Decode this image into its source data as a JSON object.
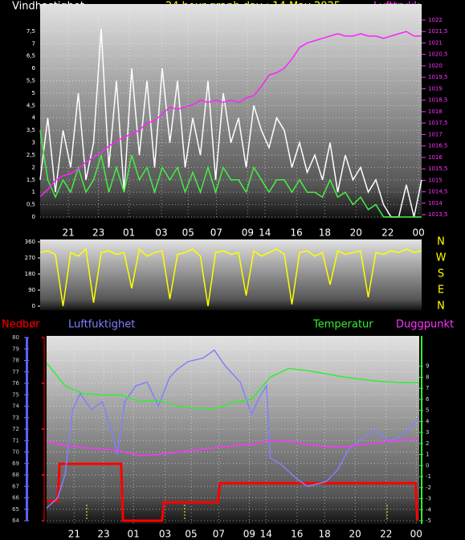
{
  "chart_data": [
    {
      "type": "line",
      "title": "24 hour graph day : 14 May 2025",
      "left_axis_label": "Vindhastighet",
      "right_axis_label": "Lufttrykk",
      "grid": true,
      "xlim": [
        0,
        100
      ],
      "xticks": [
        {
          "value": 7.4,
          "label": "21"
        },
        {
          "value": 15.3,
          "label": "23"
        },
        {
          "value": 23.3,
          "label": "01"
        },
        {
          "value": 31.8,
          "label": "03"
        },
        {
          "value": 38.8,
          "label": "05"
        },
        {
          "value": 46.2,
          "label": "07"
        },
        {
          "value": 54.4,
          "label": "09"
        },
        {
          "value": 58.9,
          "label": "14"
        },
        {
          "value": 67.2,
          "label": "16"
        },
        {
          "value": 74.6,
          "label": "18"
        },
        {
          "value": 82.8,
          "label": "20"
        },
        {
          "value": 91.1,
          "label": "22"
        },
        {
          "value": 99.2,
          "label": "00"
        }
      ],
      "ylim": [
        0,
        8.6
      ],
      "yticks": [
        0,
        {
          "value": 0.5,
          "label": "0,5"
        },
        1,
        {
          "value": 1.5,
          "label": "1,5"
        },
        2,
        {
          "value": 2.5,
          "label": "2,5"
        },
        3,
        {
          "value": 3.5,
          "label": "3,5"
        },
        4,
        {
          "value": 4.5,
          "label": "4,5"
        },
        5,
        {
          "value": 5.5,
          "label": "5,5"
        },
        6,
        {
          "value": 6.5,
          "label": "6,5"
        },
        7,
        {
          "value": 7.5,
          "label": "7,5"
        }
      ],
      "y2lim": [
        1013.4,
        1022.7
      ],
      "y2ticks": [
        {
          "value": 1013.5,
          "label": "1013,5"
        },
        1014,
        {
          "value": 1014.5,
          "label": "1014,5"
        },
        1015,
        {
          "value": 1015.5,
          "label": "1015,5"
        },
        1016,
        {
          "value": 1016.5,
          "label": "1016,5"
        },
        1017,
        {
          "value": 1017.5,
          "label": "1017,5"
        },
        1018,
        {
          "value": 1018.5,
          "label": "1018,5"
        },
        1019,
        {
          "value": 1019.5,
          "label": "1019,5"
        },
        1020,
        {
          "value": 1020.5,
          "label": "1020,5"
        },
        1021,
        {
          "value": 1021.5,
          "label": "1021,5"
        },
        1022
      ],
      "x": [
        0,
        2,
        4,
        6,
        8,
        10,
        12,
        14,
        16,
        18,
        20,
        22,
        24,
        26,
        28,
        30,
        32,
        34,
        36,
        38,
        40,
        42,
        44,
        46,
        48,
        50,
        52,
        54,
        56,
        58,
        60,
        62,
        64,
        66,
        68,
        70,
        72,
        74,
        76,
        78,
        80,
        82,
        84,
        86,
        88,
        90,
        92,
        94,
        96,
        98,
        100
      ],
      "series": [
        {
          "color": "#ffffff",
          "values": [
            1.5,
            4,
            1,
            3.5,
            2,
            5,
            1.5,
            3,
            7.6,
            2,
            5.5,
            1,
            6,
            2.5,
            5.5,
            2,
            6,
            3,
            5.5,
            2,
            4,
            2.5,
            5.5,
            1.5,
            5,
            3,
            4,
            2,
            4.5,
            3.5,
            2.8,
            4,
            3.5,
            2,
            3,
            1.8,
            2.5,
            1.5,
            3,
            1,
            2.5,
            1.5,
            2,
            1,
            1.5,
            0.5,
            0,
            0,
            1.3,
            0,
            1.5
          ]
        },
        {
          "color": "#44ee44",
          "values": [
            3.5,
            1.5,
            0.8,
            1.5,
            1,
            2,
            1,
            1.5,
            2.5,
            1,
            2,
            1,
            2.5,
            1.5,
            2,
            1,
            2,
            1.5,
            2,
            1,
            1.8,
            1,
            2,
            1,
            2,
            1.5,
            1.5,
            1,
            2,
            1.5,
            1,
            1.5,
            1.5,
            1,
            1.5,
            1,
            1,
            0.8,
            1.5,
            0.8,
            1,
            0.5,
            0.8,
            0.3,
            0.5,
            0,
            0,
            0,
            0,
            0,
            0
          ]
        },
        {
          "color": "#ff22ff",
          "axis": "y2",
          "values": [
            1014.3,
            1014.6,
            1015,
            1015.2,
            1015.3,
            1015.5,
            1015.8,
            1016,
            1016.2,
            1016.5,
            1016.7,
            1016.9,
            1017,
            1017.2,
            1017.5,
            1017.6,
            1017.9,
            1018.2,
            1018.1,
            1018.2,
            1018.3,
            1018.5,
            1018.4,
            1018.5,
            1018.4,
            1018.5,
            1018.4,
            1018.6,
            1018.7,
            1019.1,
            1019.6,
            1019.7,
            1019.9,
            1020.3,
            1020.8,
            1021,
            1021.1,
            1021.2,
            1021.3,
            1021.4,
            1021.3,
            1021.3,
            1021.4,
            1021.3,
            1021.3,
            1021.2,
            1021.3,
            1021.4,
            1021.5,
            1021.3,
            1021.3
          ]
        }
      ]
    },
    {
      "type": "line",
      "xlim": [
        0,
        100
      ],
      "ylim": [
        0,
        360
      ],
      "yticks": [
        0,
        90,
        180,
        270,
        360
      ],
      "compass_labels": [
        "N",
        "W",
        "S",
        "E",
        "N"
      ],
      "x": [
        0,
        2,
        4,
        6,
        8,
        10,
        12,
        14,
        16,
        18,
        20,
        22,
        24,
        26,
        28,
        30,
        32,
        34,
        36,
        38,
        40,
        42,
        44,
        46,
        48,
        50,
        52,
        54,
        56,
        58,
        60,
        62,
        64,
        66,
        68,
        70,
        72,
        74,
        76,
        78,
        80,
        82,
        84,
        86,
        88,
        90,
        92,
        94,
        96,
        98,
        100
      ],
      "series": [
        {
          "color": "#ffff00",
          "values": [
            300,
            310,
            290,
            0,
            300,
            280,
            320,
            20,
            300,
            310,
            290,
            300,
            100,
            320,
            280,
            300,
            310,
            40,
            290,
            300,
            320,
            280,
            0,
            300,
            310,
            290,
            300,
            60,
            310,
            280,
            300,
            320,
            290,
            10,
            300,
            310,
            280,
            300,
            120,
            310,
            290,
            300,
            310,
            50,
            300,
            290,
            310,
            300,
            320,
            300,
            310
          ]
        }
      ]
    },
    {
      "type": "line",
      "grid": true,
      "xlim": [
        0,
        100
      ],
      "xticks": [
        {
          "value": 7.4,
          "label": "21"
        },
        {
          "value": 15.3,
          "label": "23"
        },
        {
          "value": 23.3,
          "label": "01"
        },
        {
          "value": 31.8,
          "label": "03"
        },
        {
          "value": 38.8,
          "label": "05"
        },
        {
          "value": 46.2,
          "label": "07"
        },
        {
          "value": 54.4,
          "label": "09"
        },
        {
          "value": 58.9,
          "label": "14"
        },
        {
          "value": 67.2,
          "label": "16"
        },
        {
          "value": 74.6,
          "label": "18"
        },
        {
          "value": 82.8,
          "label": "20"
        },
        {
          "value": 91.1,
          "label": "22"
        },
        {
          "value": 99.2,
          "label": "00"
        }
      ],
      "ylim": [
        64,
        80
      ],
      "yticks": [
        64,
        65,
        66,
        67,
        68,
        69,
        70,
        71,
        72,
        73,
        74,
        75,
        76,
        77,
        78,
        79,
        80
      ],
      "y2lim": [
        -5,
        11.6
      ],
      "y2ticks": [
        -5,
        -4,
        -3,
        -2,
        -1,
        0,
        1,
        2,
        3,
        4,
        5,
        6,
        7,
        8,
        9
      ],
      "y3lim": [
        0,
        4
      ],
      "y3ticks": [
        0,
        1,
        2,
        3,
        4
      ],
      "series": [
        {
          "name": "Nedbør",
          "color": "#ff0000",
          "axis": "y3",
          "x": [
            0,
            3,
            3.5,
            20,
            20.5,
            31,
            31.5,
            46,
            46.5,
            99,
            99.5
          ],
          "values": [
            0.43,
            0.43,
            1.24,
            1.24,
            0,
            0,
            0.4,
            0.4,
            0.82,
            0.82,
            0
          ]
        },
        {
          "name": "Luftfuktighet",
          "color": "#8080ff",
          "x": [
            0,
            3,
            5,
            7,
            9,
            12,
            15,
            18,
            19,
            21,
            24,
            27,
            30,
            33,
            35,
            38,
            42,
            45,
            48,
            52,
            55,
            57,
            59,
            60,
            63,
            67,
            70,
            75,
            78,
            81,
            84,
            88,
            92,
            96,
            100
          ],
          "values": [
            65.1,
            66,
            68.1,
            73.7,
            75.1,
            73.7,
            74.4,
            71.2,
            69.8,
            74.4,
            75.8,
            76.1,
            74,
            76.5,
            77.2,
            77.9,
            78.2,
            78.9,
            77.5,
            76.1,
            73.3,
            74.7,
            75.8,
            69.5,
            68.9,
            67.7,
            67,
            67.4,
            68.4,
            70.2,
            71,
            71.9,
            70.9,
            71.6,
            73
          ]
        },
        {
          "name": "Temperatur",
          "color": "#33ee33",
          "axis": "y2",
          "x": [
            0,
            5,
            10,
            15,
            20,
            25,
            30,
            35,
            40,
            45,
            50,
            55,
            60,
            65,
            70,
            75,
            80,
            85,
            90,
            95,
            100
          ],
          "values": [
            9.3,
            7.2,
            6.5,
            6.4,
            6.4,
            5.8,
            5.9,
            5.4,
            5.2,
            5.1,
            5.7,
            6.0,
            8.0,
            8.8,
            8.6,
            8.3,
            8.0,
            7.8,
            7.6,
            7.5,
            7.5
          ]
        },
        {
          "name": "Duggpunkt",
          "color": "#ff33ff",
          "axis": "y2",
          "x": [
            0,
            5,
            10,
            15,
            20,
            25,
            30,
            35,
            40,
            45,
            50,
            55,
            60,
            65,
            70,
            75,
            80,
            85,
            90,
            95,
            100
          ],
          "values": [
            2.2,
            1.8,
            1.6,
            1.5,
            1.3,
            0.9,
            1.0,
            1.2,
            1.4,
            1.6,
            1.8,
            1.9,
            2.3,
            2.2,
            1.9,
            1.7,
            1.7,
            1.9,
            2.1,
            2.3,
            2.4
          ]
        }
      ]
    }
  ]
}
